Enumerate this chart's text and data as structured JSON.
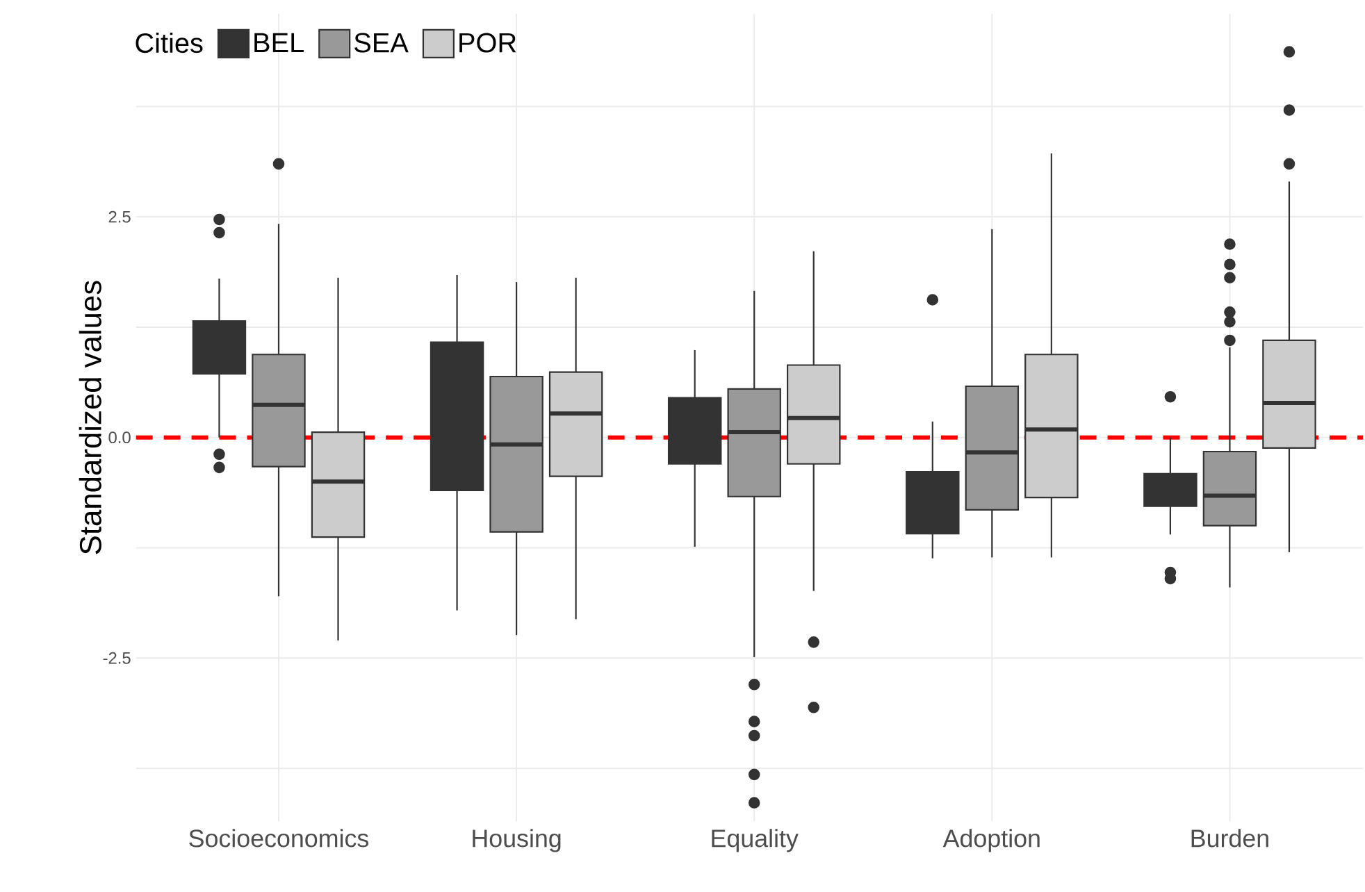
{
  "chart_data": {
    "type": "box",
    "ylabel": "Standardized values",
    "legend_title": "Cities",
    "legend": "top left",
    "grid": true,
    "categories": [
      "Socioeconomics",
      "Housing",
      "Equality",
      "Adoption",
      "Burden"
    ],
    "ylim": [
      -4.35,
      4.8
    ],
    "yticks": [
      {
        "value": -3.75,
        "label": null
      },
      {
        "value": -2.5,
        "label": "-2.5"
      },
      {
        "value": -1.25,
        "label": null
      },
      {
        "value": 0,
        "label": "0.0"
      },
      {
        "value": 1.25,
        "label": null
      },
      {
        "value": 2.5,
        "label": "2.5"
      },
      {
        "value": 3.75,
        "label": null
      }
    ],
    "ref_lines": [
      {
        "axis": "y",
        "value": 0,
        "color": "#ff0000",
        "line_style": "dashed"
      }
    ],
    "series": [
      {
        "name": "BEL",
        "color": "#333333",
        "boxes": [
          {
            "low": 0.0,
            "q1": 0.72,
            "median": 1.05,
            "q3": 1.32,
            "high": 1.8,
            "outliers": [
              2.32,
              2.47,
              -0.19,
              -0.34
            ]
          },
          {
            "low": -1.96,
            "q1": -0.6,
            "median": 0.2,
            "q3": 1.08,
            "high": 1.84
          },
          {
            "low": -1.24,
            "q1": -0.3,
            "median": 0.1,
            "q3": 0.45,
            "high": 0.99
          },
          {
            "low": -1.37,
            "q1": -1.09,
            "median": -0.7,
            "q3": -0.39,
            "high": 0.18,
            "outliers": [
              1.56
            ]
          },
          {
            "low": -1.1,
            "q1": -0.78,
            "median": -0.6,
            "q3": -0.41,
            "high": 0.0,
            "outliers": [
              0.46,
              -1.53,
              -1.6
            ]
          }
        ]
      },
      {
        "name": "SEA",
        "color": "#999999",
        "boxes": [
          {
            "low": -1.8,
            "q1": -0.33,
            "median": 0.37,
            "q3": 0.94,
            "high": 2.42,
            "outliers": [
              3.1
            ]
          },
          {
            "low": -2.24,
            "q1": -1.07,
            "median": -0.08,
            "q3": 0.69,
            "high": 1.76
          },
          {
            "low": -2.49,
            "q1": -0.67,
            "median": 0.06,
            "q3": 0.55,
            "high": 1.66,
            "outliers": [
              -2.8,
              -3.22,
              -3.38,
              -3.82,
              -4.14
            ]
          },
          {
            "low": -1.36,
            "q1": -0.82,
            "median": -0.17,
            "q3": 0.58,
            "high": 2.36
          },
          {
            "low": -1.7,
            "q1": -1.0,
            "median": -0.66,
            "q3": -0.16,
            "high": 1.02,
            "outliers": [
              2.19,
              1.96,
              1.81,
              1.42,
              1.31,
              1.1
            ]
          }
        ]
      },
      {
        "name": "POR",
        "color": "#cccccc",
        "boxes": [
          {
            "low": -2.3,
            "q1": -1.13,
            "median": -0.5,
            "q3": 0.06,
            "high": 1.81
          },
          {
            "low": -2.06,
            "q1": -0.44,
            "median": 0.27,
            "q3": 0.74,
            "high": 1.81
          },
          {
            "low": -1.74,
            "q1": -0.3,
            "median": 0.22,
            "q3": 0.82,
            "high": 2.11,
            "outliers": [
              -2.32,
              -3.06
            ]
          },
          {
            "low": -1.36,
            "q1": -0.68,
            "median": 0.09,
            "q3": 0.94,
            "high": 3.22
          },
          {
            "low": -1.3,
            "q1": -0.12,
            "median": 0.39,
            "q3": 1.1,
            "high": 2.9,
            "outliers": [
              3.1,
              3.71,
              4.37
            ]
          }
        ]
      }
    ]
  }
}
